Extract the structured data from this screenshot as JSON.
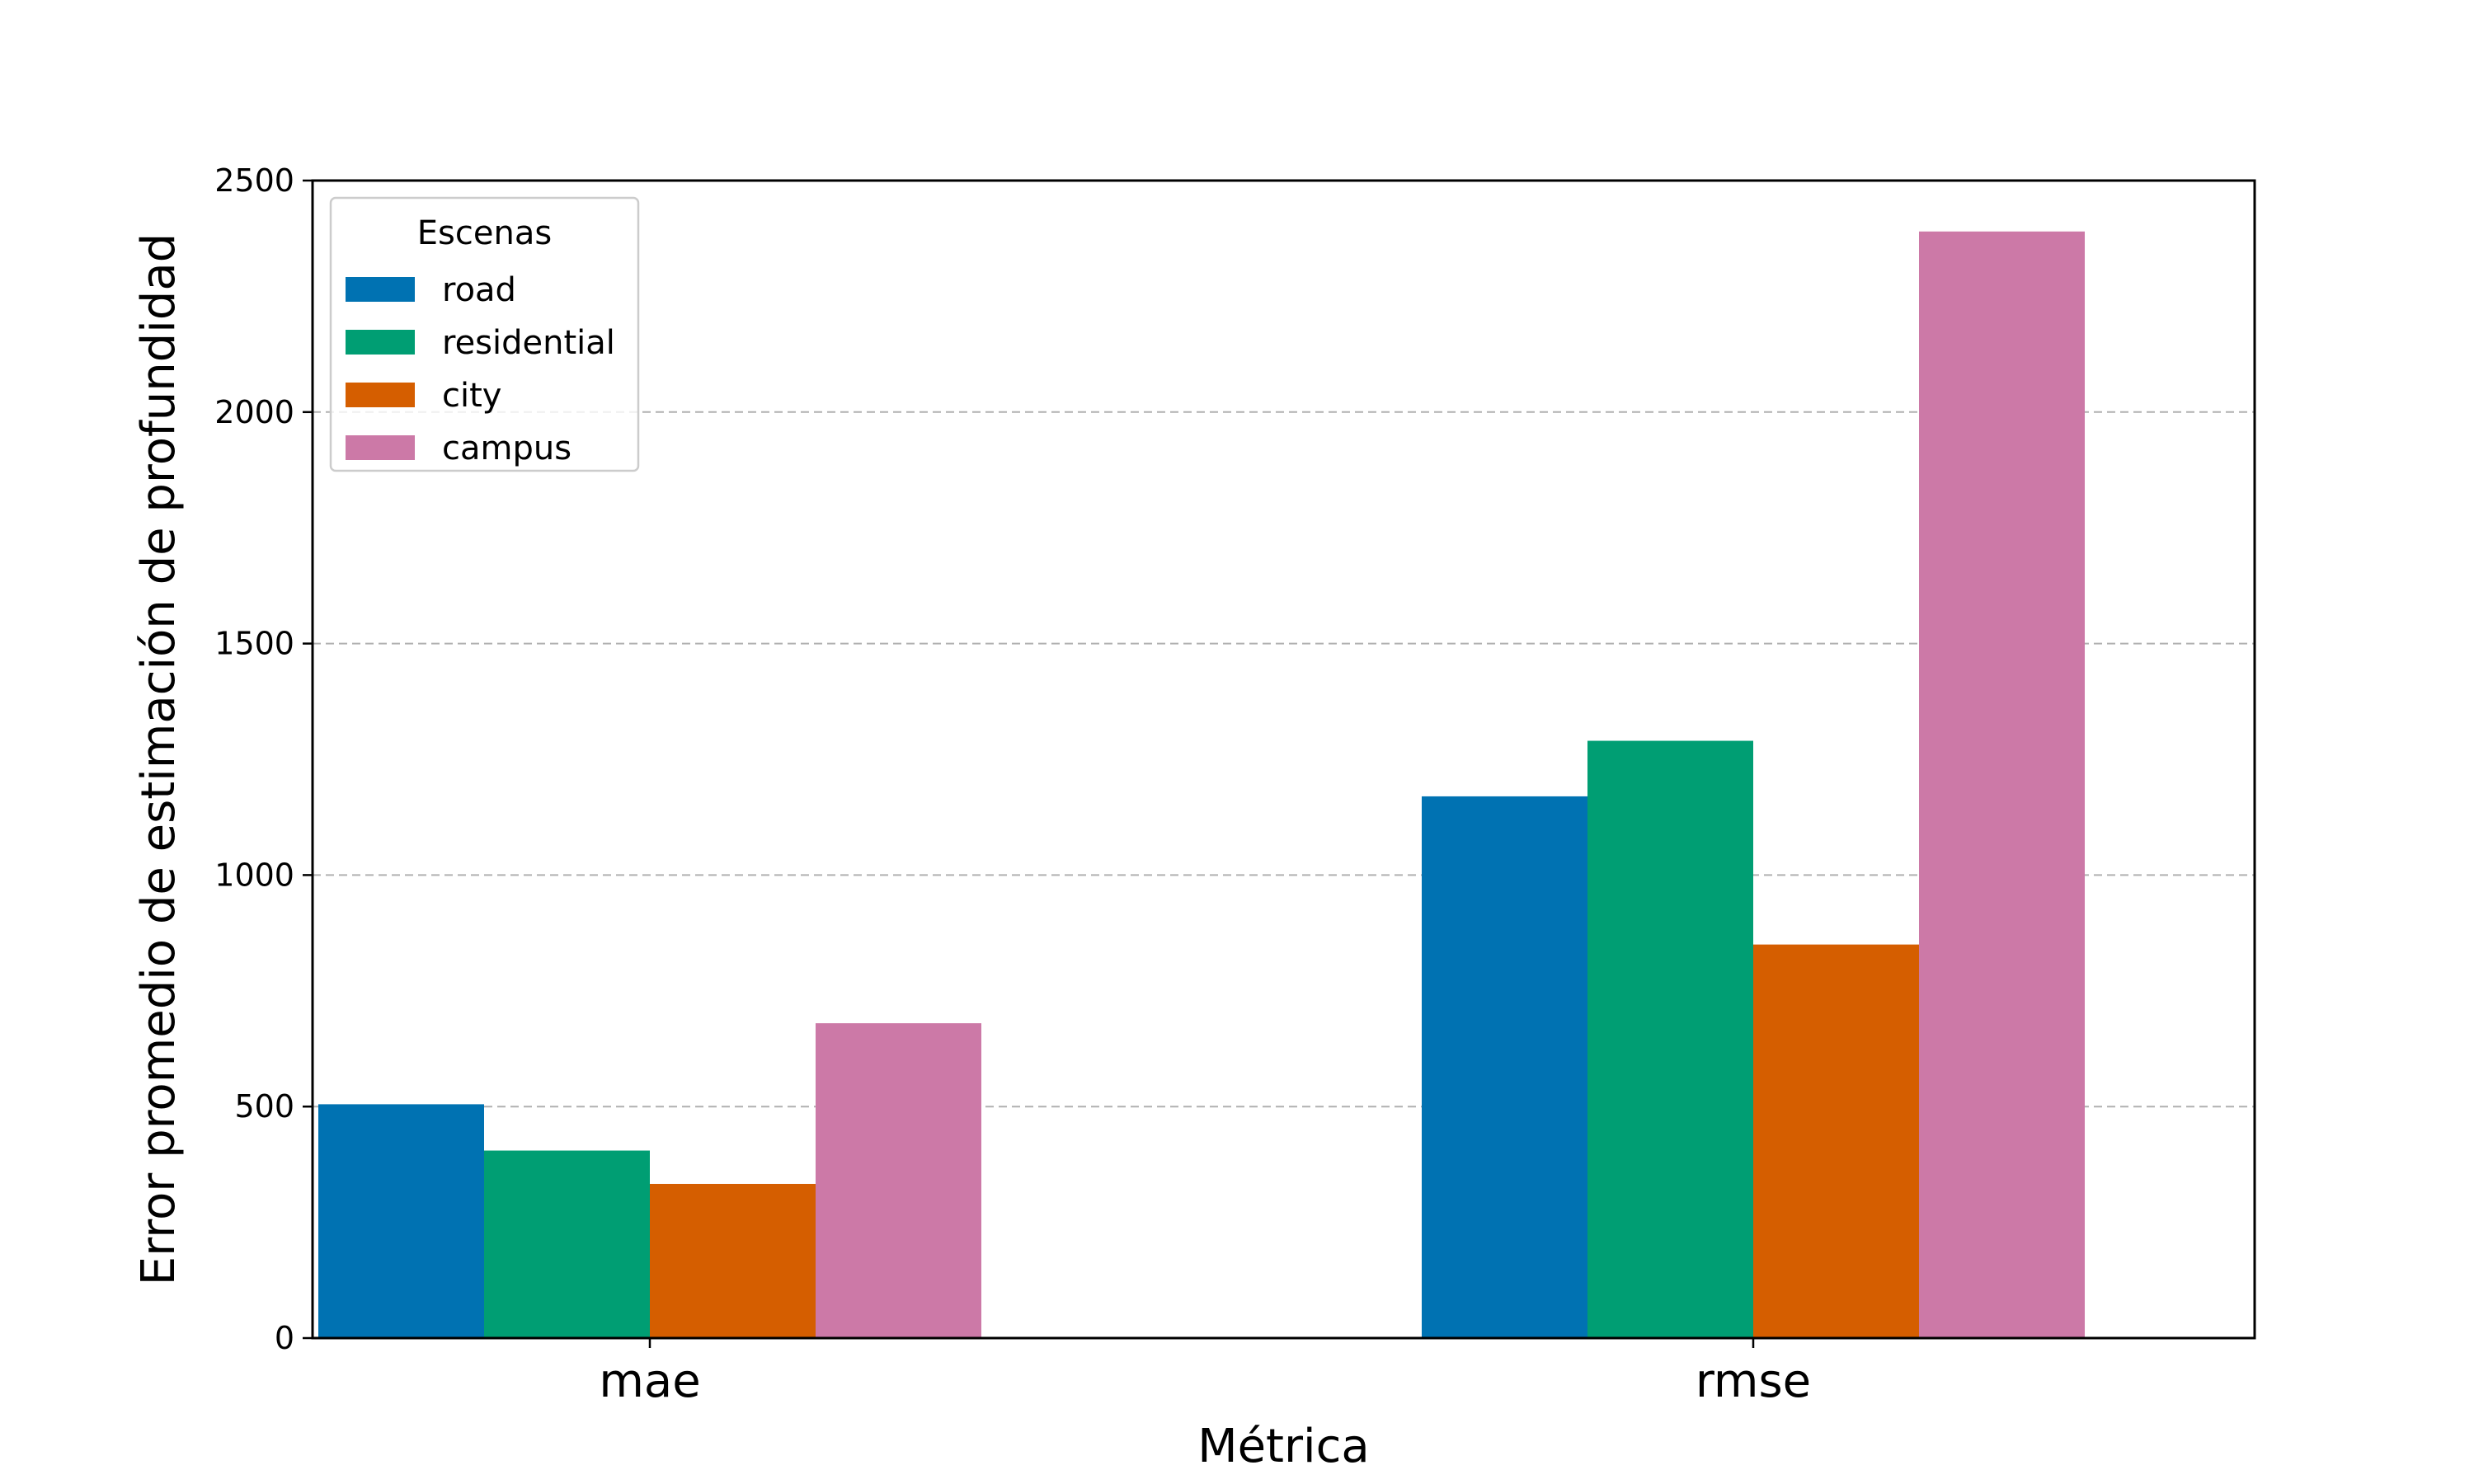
{
  "chart_data": {
    "type": "bar",
    "title": "",
    "xlabel": "Métrica",
    "ylabel": "Error promedio de estimación de profundidad",
    "categories": [
      "mae",
      "rmse"
    ],
    "series": [
      {
        "name": "road",
        "values": [
          505,
          1170
        ],
        "color": "#0072B2"
      },
      {
        "name": "residential",
        "values": [
          405,
          1290
        ],
        "color": "#009E73"
      },
      {
        "name": "city",
        "values": [
          333,
          850
        ],
        "color": "#D55E00"
      },
      {
        "name": "campus",
        "values": [
          680,
          2390
        ],
        "color": "#CC79A7"
      }
    ],
    "ylim": [
      0,
      2500
    ],
    "yticks": [
      0,
      500,
      1000,
      1500,
      2000,
      2500
    ],
    "grid": "horizontal dashed",
    "legend": {
      "title": "Escenas",
      "placement": "top-left"
    }
  }
}
